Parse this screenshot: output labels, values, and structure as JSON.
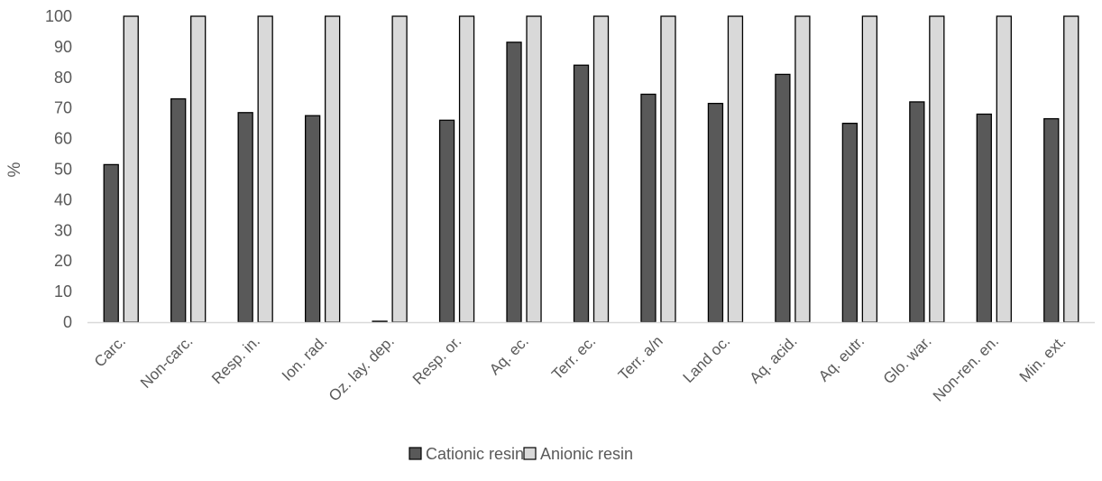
{
  "chart_data": {
    "type": "bar",
    "ylabel": "%",
    "xlabel": "",
    "title": "",
    "ylim": [
      0,
      100
    ],
    "yticks": [
      0,
      10,
      20,
      30,
      40,
      50,
      60,
      70,
      80,
      90,
      100
    ],
    "grid": false,
    "legend_position": "bottom",
    "categories": [
      "Carc.",
      "Non-carc.",
      "Resp. in.",
      "Ion. rad.",
      "Oz. lay. dep.",
      "Resp. or.",
      "Aq. ec.",
      "Terr. ec.",
      "Terr. a/n",
      "Land oc.",
      "Aq. acid.",
      "Aq. eutr.",
      "Glo. war.",
      "Non-ren. en.",
      "Min. ext."
    ],
    "series": [
      {
        "name": "Cationic resin",
        "color": "#595959",
        "values": [
          51.5,
          73,
          68.5,
          67.5,
          0.3,
          66,
          91.5,
          84,
          74.5,
          71.5,
          81,
          65,
          72,
          68,
          66.5
        ]
      },
      {
        "name": "Anionic resin",
        "color": "#d9d9d9",
        "values": [
          100,
          100,
          100,
          100,
          100,
          100,
          100,
          100,
          100,
          100,
          100,
          100,
          100,
          100,
          100
        ]
      }
    ]
  }
}
